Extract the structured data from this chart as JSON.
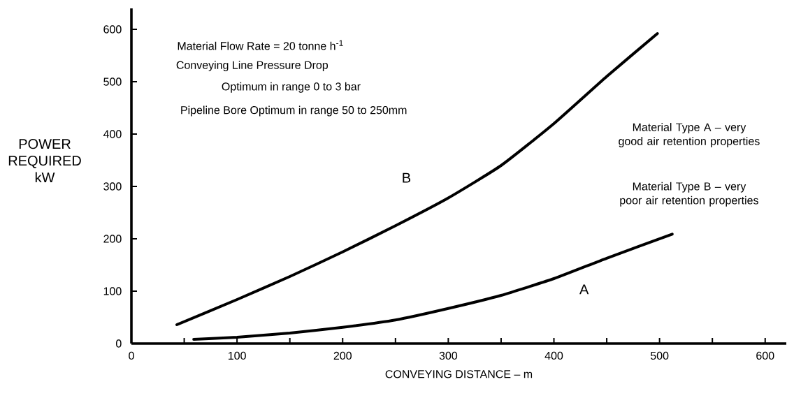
{
  "chart_data": {
    "type": "line",
    "xlabel": "CONVEYING DISTANCE – m",
    "ylabel": "POWER REQUIRED kW",
    "xlim": [
      0,
      620
    ],
    "ylim": [
      0,
      640
    ],
    "xticks": [
      0,
      {
        "value": 50,
        "label": null
      },
      100,
      {
        "value": 150,
        "label": null
      },
      200,
      {
        "value": 250,
        "label": null
      },
      300,
      {
        "value": 350,
        "label": null
      },
      400,
      {
        "value": 450,
        "label": null
      },
      500,
      {
        "value": 550,
        "label": null
      },
      600
    ],
    "yticks": [
      0,
      100,
      200,
      300,
      400,
      500,
      600
    ],
    "marker": "none",
    "line_style": "solid",
    "series": [
      {
        "name": "B",
        "color": "#000000",
        "x": [
          43,
          100,
          150,
          200,
          250,
          300,
          350,
          400,
          450,
          498
        ],
        "values": [
          36,
          84,
          128,
          175,
          225,
          278,
          340,
          420,
          510,
          592
        ]
      },
      {
        "name": "A",
        "color": "#000000",
        "x": [
          59,
          100,
          150,
          200,
          250,
          300,
          350,
          400,
          450,
          512
        ],
        "values": [
          8,
          12,
          20,
          31,
          45,
          67,
          92,
          124,
          163,
          209
        ]
      }
    ],
    "annotations": [
      "Material Flow Rate = 20 tonne h$^{-1}$",
      "Conveying Line Pressure Drop",
      "Optimum in range 0 to 3 bar",
      "Pipeline Bore Optimum in range 50 to 250mm",
      "Material Type A – very good air retention properties",
      "Material Type B – very poor air retention properties"
    ]
  }
}
